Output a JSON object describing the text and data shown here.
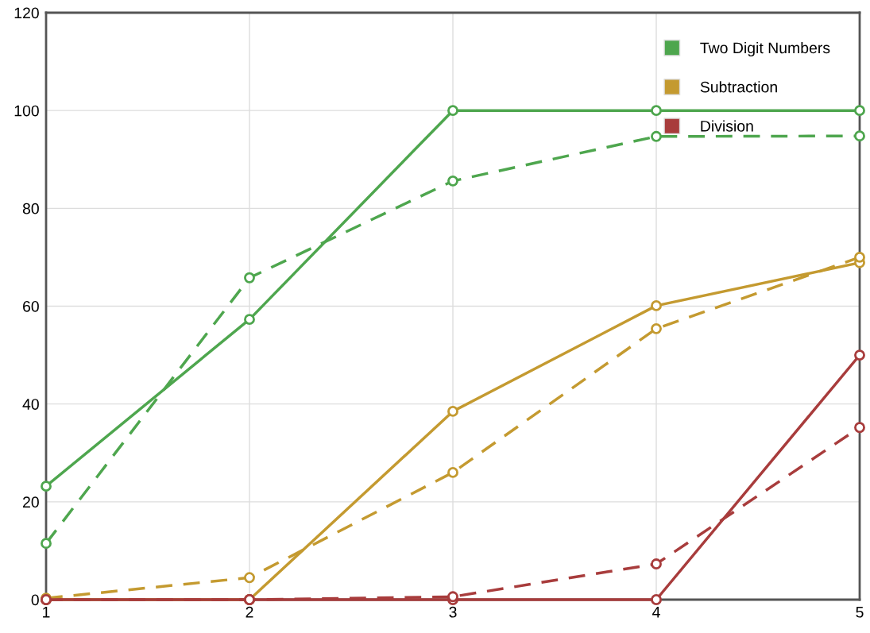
{
  "chart_data": {
    "type": "line",
    "x": [
      1,
      2,
      3,
      4,
      5
    ],
    "xlim": [
      1,
      5
    ],
    "xticks": [
      1,
      2,
      3,
      4,
      5
    ],
    "ylim": [
      0,
      120
    ],
    "yticks": [
      0,
      20,
      40,
      60,
      80,
      100,
      120
    ],
    "grid": true,
    "legend": "top right",
    "marker": "circle",
    "series": [
      {
        "name": "Two Digit Numbers",
        "color": "#4ea64e",
        "line_style": "solid",
        "values": [
          23.2,
          57.3,
          100,
          100,
          100
        ]
      },
      {
        "name": "Subtraction",
        "color": "#c49a30",
        "line_style": "solid",
        "values": [
          0,
          0,
          38.5,
          60.1,
          68.9
        ]
      },
      {
        "name": "Division",
        "color": "#a83c3c",
        "line_style": "solid",
        "values": [
          0,
          0,
          0,
          0,
          50
        ]
      },
      {
        "color": "#4ea64e",
        "line_style": "dashed",
        "values": [
          11.5,
          65.8,
          85.6,
          94.7,
          94.8
        ]
      },
      {
        "color": "#c49a30",
        "line_style": "dashed",
        "values": [
          0.3,
          4.5,
          26,
          55.4,
          70
        ]
      },
      {
        "color": "#a83c3c",
        "line_style": "dashed",
        "values": [
          0,
          0,
          0.6,
          7.3,
          35.2
        ]
      }
    ]
  }
}
